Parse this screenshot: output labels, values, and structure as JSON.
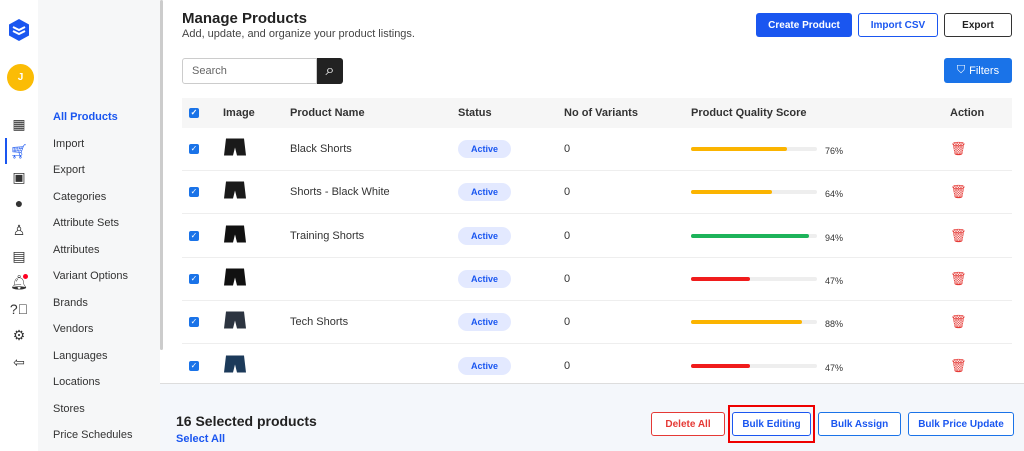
{
  "user": {
    "initial": "J"
  },
  "rail": [
    "dashboard-icon",
    "cart-icon",
    "media-icon",
    "globe-icon",
    "users-icon",
    "invoice-icon",
    "bell-icon",
    "help-icon",
    "settings-icon",
    "logout-icon"
  ],
  "submenu": [
    "All Products",
    "Import",
    "Export",
    "Categories",
    "Attribute Sets",
    "Attributes",
    "Variant Options",
    "Brands",
    "Vendors",
    "Languages",
    "Locations",
    "Stores",
    "Price Schedules"
  ],
  "header": {
    "title": "Manage Products",
    "subtitle": "Add, update, and organize your product listings.",
    "create": "Create Product",
    "import": "Import CSV",
    "export": "Export",
    "filters": "Filters"
  },
  "search": {
    "placeholder": "Search"
  },
  "table": {
    "columns": [
      "Image",
      "Product Name",
      "Status",
      "No of Variants",
      "Product Quality Score",
      "Action"
    ],
    "rows": [
      {
        "name": "Black Shorts",
        "status": "Active",
        "variants": "0",
        "score": 76,
        "score_label": "76%",
        "color": "#fbb400",
        "img": "#1a1a1a"
      },
      {
        "name": "Shorts - Black White",
        "status": "Active",
        "variants": "0",
        "score": 64,
        "score_label": "64%",
        "color": "#fbb400",
        "img": "#1a1a1a"
      },
      {
        "name": "Training Shorts",
        "status": "Active",
        "variants": "0",
        "score": 94,
        "score_label": "94%",
        "color": "#1db35a",
        "img": "#111"
      },
      {
        "name": "",
        "status": "Active",
        "variants": "0",
        "score": 47,
        "score_label": "47%",
        "color": "#f01c1c",
        "img": "#111"
      },
      {
        "name": "Tech Shorts",
        "status": "Active",
        "variants": "0",
        "score": 88,
        "score_label": "88%",
        "color": "#fbb400",
        "img": "#2c3440"
      },
      {
        "name": "",
        "status": "Active",
        "variants": "0",
        "score": 47,
        "score_label": "47%",
        "color": "#f01c1c",
        "img": "#1c3a5a"
      }
    ]
  },
  "bottom": {
    "selected": "16 Selected products",
    "select_all": "Select All",
    "delete_all": "Delete All",
    "bulk_editing": "Bulk Editing",
    "bulk_assign": "Bulk Assign",
    "bulk_price": "Bulk Price Update"
  },
  "colors": {
    "accent": "#1a56f0",
    "danger": "#e53935"
  }
}
